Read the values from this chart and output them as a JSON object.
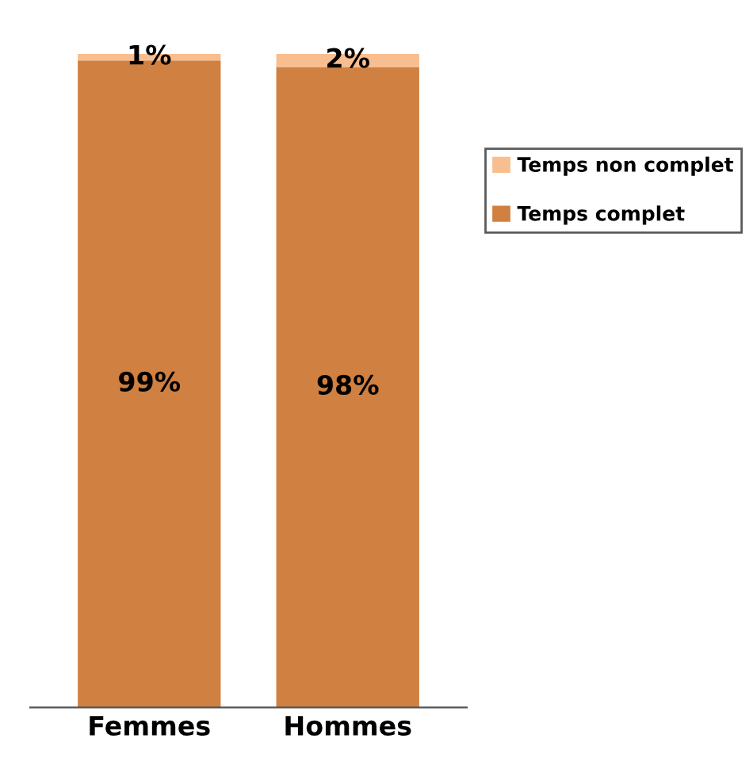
{
  "chart_data": {
    "type": "bar",
    "stacked": true,
    "categories": [
      "Femmes",
      "Hommes"
    ],
    "series": [
      {
        "name": "Temps complet",
        "color": "#d08040",
        "values": [
          99,
          98
        ],
        "value_labels": [
          "99%",
          "98%"
        ]
      },
      {
        "name": "Temps non complet",
        "color": "#f9be8f",
        "values": [
          1,
          2
        ],
        "value_labels": [
          "1%",
          "2%"
        ]
      }
    ],
    "legend": "right",
    "grid": false,
    "tick_labels": "x"
  }
}
